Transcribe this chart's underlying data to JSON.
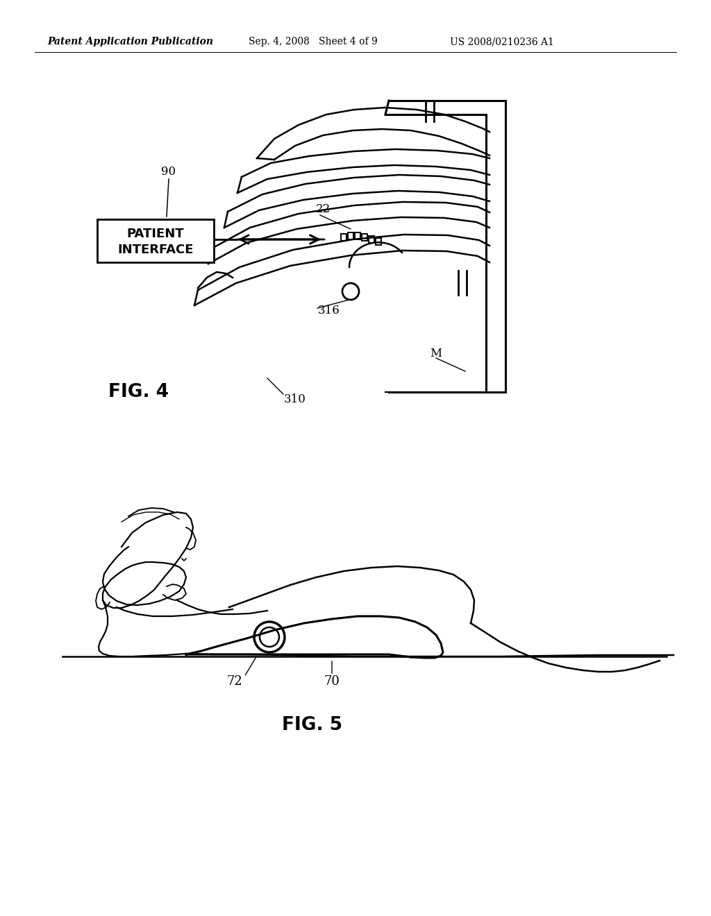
{
  "background_color": "#ffffff",
  "header_text": "Patent Application Publication",
  "header_date": "Sep. 4, 2008   Sheet 4 of 9",
  "header_patent": "US 2008/0210236 A1",
  "fig4_label": "FIG. 4",
  "fig5_label": "FIG. 5",
  "label_90": "90",
  "label_22": "22",
  "label_316": "316",
  "label_310": "310",
  "label_M": "M",
  "label_72": "72",
  "label_70": "70",
  "pi_line1": "PATIENT",
  "pi_line2": "INTERFACE"
}
